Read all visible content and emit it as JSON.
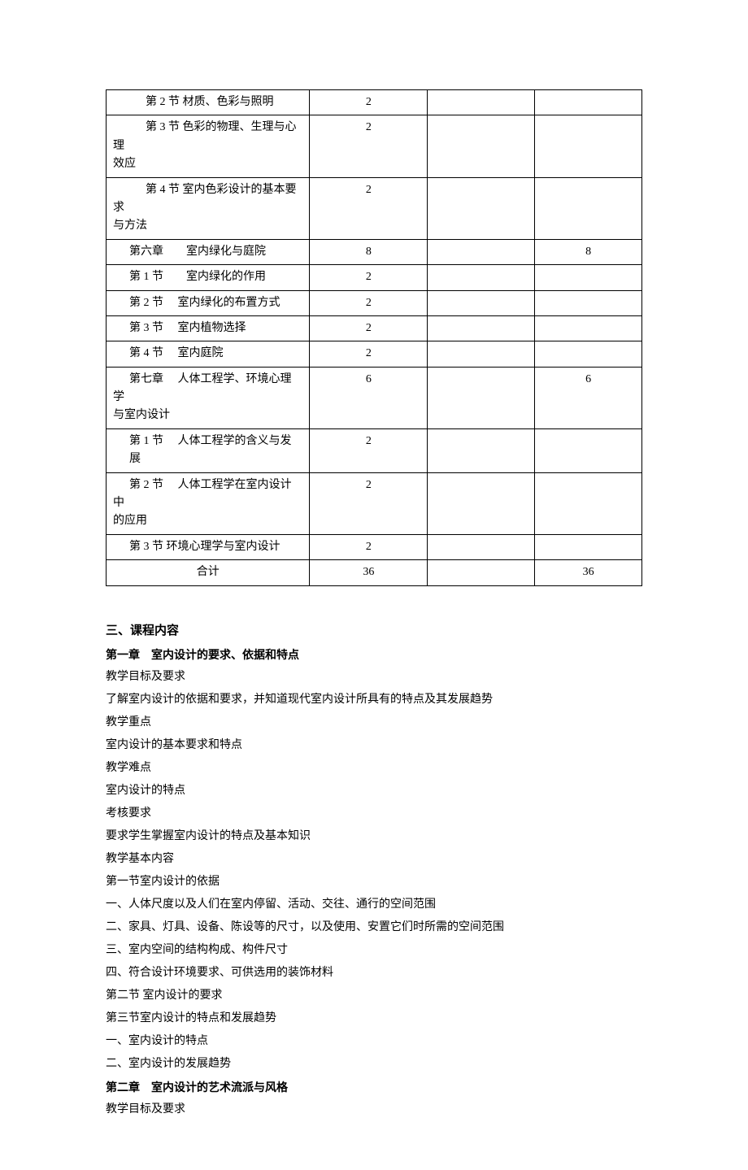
{
  "table": {
    "rows": [
      {
        "c1": "  第 2 节  材质、色彩与照明",
        "c1class": "indent1",
        "c2": "2",
        "c3": "",
        "c4": ""
      },
      {
        "c1": "  第 3 节  色彩的物理、生理与心理效应",
        "c1class": "indent1-wrap",
        "c2": "2",
        "c3": "",
        "c4": ""
      },
      {
        "c1": "  第 4 节  室内色彩设计的基本要求与方法",
        "c1class": "indent1-wrap",
        "c2": "2",
        "c3": "",
        "c4": ""
      },
      {
        "c1": "第六章　　室内绿化与庭院",
        "c1class": "indent2",
        "c2": "8",
        "c3": "",
        "c4": "8"
      },
      {
        "c1": "第 1 节　　室内绿化的作用",
        "c1class": "indent2",
        "c2": "2",
        "c3": "",
        "c4": ""
      },
      {
        "c1": "第 2 节　 室内绿化的布置方式",
        "c1class": "indent2",
        "c2": "2",
        "c3": "",
        "c4": ""
      },
      {
        "c1": "第 3 节　 室内植物选择",
        "c1class": "indent2",
        "c2": "2",
        "c3": "",
        "c4": ""
      },
      {
        "c1": "第 4 节　 室内庭院",
        "c1class": "indent2",
        "c2": "2",
        "c3": "",
        "c4": ""
      },
      {
        "c1": "第七章　 人体工程学、环境心理学与室内设计",
        "c1class": "indent2-wrap",
        "c2": "6",
        "c3": "",
        "c4": "6"
      },
      {
        "c1": "第 1 节　 人体工程学的含义与发展",
        "c1class": "indent2",
        "c2": "2",
        "c3": "",
        "c4": ""
      },
      {
        "c1": "第 2 节　 人体工程学在室内设计中的应用",
        "c1class": "indent2-wrap",
        "c2": "2",
        "c3": "",
        "c4": ""
      },
      {
        "c1": "第 3 节  环境心理学与室内设计",
        "c1class": "indent2",
        "c2": "2",
        "c3": "",
        "c4": ""
      },
      {
        "c1": "合计",
        "c1class": "center",
        "c2": "36",
        "c3": "",
        "c4": "36"
      }
    ]
  },
  "content": {
    "h1": "三、课程内容",
    "ch1": "第一章　室内设计的要求、依据和特点",
    "lines1": [
      "教学目标及要求",
      "了解室内设计的依据和要求，并知道现代室内设计所具有的特点及其发展趋势",
      "教学重点",
      "室内设计的基本要求和特点",
      "教学难点",
      "室内设计的特点",
      "考核要求",
      "要求学生掌握室内设计的特点及基本知识",
      "教学基本内容",
      "第一节室内设计的依据",
      "一、人体尺度以及人们在室内停留、活动、交往、通行的空间范围",
      "二、家具、灯具、设备、陈设等的尺寸，以及使用、安置它们时所需的空间范围",
      "三、室内空间的结构构成、构件尺寸",
      "四、符合设计环境要求、可供选用的装饰材料",
      "第二节  室内设计的要求",
      "第三节室内设计的特点和发展趋势",
      "一、室内设计的特点",
      "二、室内设计的发展趋势"
    ],
    "ch2": "第二章　室内设计的艺术流派与风格",
    "lines2": [
      "教学目标及要求"
    ]
  }
}
